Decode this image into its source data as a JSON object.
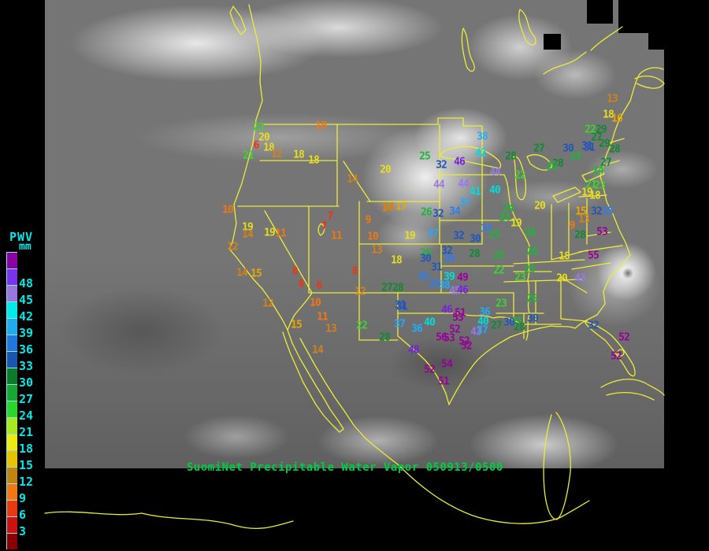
{
  "header": {
    "title": "SuomiNet Precipitable Water Vapor 050913/0500",
    "title_color": "#00cc44"
  },
  "legend": {
    "title": "PWV",
    "unit": "mm",
    "text_color": "#00e8e8",
    "labels": [
      "48",
      "45",
      "42",
      "39",
      "36",
      "33",
      "30",
      "27",
      "24",
      "21",
      "18",
      "15",
      "12",
      "9",
      "6",
      "3"
    ],
    "swatch_colors": [
      "#8a00a0",
      "#7733ee",
      "#9977dd",
      "#00e8e8",
      "#22aaee",
      "#2277dd",
      "#1a55b0",
      "#0d7a2a",
      "#16a832",
      "#2ed42e",
      "#a8e81e",
      "#eee814",
      "#e8c400",
      "#c08414",
      "#f07711",
      "#e83a10",
      "#cc1111",
      "#8a0000"
    ],
    "value_colors": [
      {
        "min": 49,
        "color": "#990099"
      },
      {
        "min": 46,
        "color": "#7722dd"
      },
      {
        "min": 43,
        "color": "#9977ee"
      },
      {
        "min": 39,
        "color": "#00dddd"
      },
      {
        "min": 36,
        "color": "#22aaff"
      },
      {
        "min": 33,
        "color": "#2d7df0"
      },
      {
        "min": 30,
        "color": "#2255bb"
      },
      {
        "min": 27,
        "color": "#0f8a30"
      },
      {
        "min": 24,
        "color": "#1db53a"
      },
      {
        "min": 21,
        "color": "#3ed232"
      },
      {
        "min": 18,
        "color": "#e6de1c"
      },
      {
        "min": 15,
        "color": "#e8a800"
      },
      {
        "min": 12,
        "color": "#d2821a"
      },
      {
        "min": 9,
        "color": "#f07711"
      },
      {
        "min": 6,
        "color": "#ee3311"
      },
      {
        "min": 3,
        "color": "#d41111"
      },
      {
        "min": 0,
        "color": "#990000"
      }
    ]
  },
  "chart_data": {
    "type": "scatter",
    "title": "SuomiNet Precipitable Water Vapor 050913/0500",
    "units": "mm",
    "note": "stations = [PWV_mm, x_px, y_px] on 900x700 canvas",
    "stations": [
      [
        23,
        328,
        162
      ],
      [
        20,
        335,
        175
      ],
      [
        6,
        325,
        185
      ],
      [
        18,
        341,
        188
      ],
      [
        21,
        315,
        198
      ],
      [
        12,
        351,
        196
      ],
      [
        18,
        379,
        197
      ],
      [
        18,
        398,
        204
      ],
      [
        10,
        407,
        160
      ],
      [
        14,
        447,
        228
      ],
      [
        20,
        489,
        216
      ],
      [
        25,
        539,
        199
      ],
      [
        38,
        612,
        174
      ],
      [
        42,
        610,
        195
      ],
      [
        32,
        560,
        210
      ],
      [
        46,
        583,
        206
      ],
      [
        44,
        628,
        219
      ],
      [
        28,
        648,
        199
      ],
      [
        27,
        684,
        189
      ],
      [
        30,
        721,
        189
      ],
      [
        31,
        748,
        188
      ],
      [
        24,
        730,
        199
      ],
      [
        28,
        708,
        208
      ],
      [
        26,
        700,
        212
      ],
      [
        22,
        660,
        223
      ],
      [
        44,
        557,
        235
      ],
      [
        44,
        588,
        234
      ],
      [
        41,
        603,
        244
      ],
      [
        40,
        628,
        242
      ],
      [
        37,
        590,
        258
      ],
      [
        26,
        541,
        270
      ],
      [
        32,
        556,
        272
      ],
      [
        34,
        577,
        269
      ],
      [
        14,
        491,
        265
      ],
      [
        17,
        509,
        263
      ],
      [
        20,
        685,
        262
      ],
      [
        24,
        645,
        265
      ],
      [
        24,
        640,
        277
      ],
      [
        19,
        655,
        284
      ],
      [
        13,
        777,
        126
      ],
      [
        18,
        772,
        146
      ],
      [
        16,
        783,
        151
      ],
      [
        22,
        749,
        165
      ],
      [
        29,
        763,
        165
      ],
      [
        27,
        757,
        175
      ],
      [
        31,
        745,
        186
      ],
      [
        29,
        767,
        183
      ],
      [
        28,
        780,
        190
      ],
      [
        27,
        769,
        207
      ],
      [
        24,
        759,
        217
      ],
      [
        21,
        750,
        235
      ],
      [
        23,
        761,
        236
      ],
      [
        19,
        745,
        245
      ],
      [
        18,
        755,
        249
      ],
      [
        15,
        737,
        269
      ],
      [
        13,
        741,
        279
      ],
      [
        9,
        726,
        287
      ],
      [
        32,
        757,
        269
      ],
      [
        35,
        771,
        269
      ],
      [
        28,
        736,
        299
      ],
      [
        53,
        764,
        295
      ],
      [
        55,
        753,
        325
      ],
      [
        18,
        716,
        326
      ],
      [
        20,
        713,
        354
      ],
      [
        43,
        736,
        354
      ],
      [
        10,
        289,
        267
      ],
      [
        19,
        314,
        289
      ],
      [
        14,
        314,
        298
      ],
      [
        19,
        342,
        296
      ],
      [
        11,
        356,
        297
      ],
      [
        12,
        295,
        314
      ],
      [
        14,
        307,
        347
      ],
      [
        15,
        325,
        348
      ],
      [
        8,
        374,
        345
      ],
      [
        8,
        382,
        361
      ],
      [
        6,
        405,
        363
      ],
      [
        12,
        340,
        386
      ],
      [
        10,
        400,
        385
      ],
      [
        11,
        409,
        403
      ],
      [
        15,
        376,
        413
      ],
      [
        13,
        420,
        418
      ],
      [
        14,
        403,
        445
      ],
      [
        7,
        419,
        275
      ],
      [
        7,
        411,
        288
      ],
      [
        9,
        467,
        280
      ],
      [
        10,
        473,
        301
      ],
      [
        13,
        478,
        318
      ],
      [
        11,
        427,
        300
      ],
      [
        14,
        493,
        263
      ],
      [
        8,
        450,
        345
      ],
      [
        12,
        457,
        371
      ],
      [
        19,
        520,
        300
      ],
      [
        37,
        549,
        297
      ],
      [
        32,
        582,
        300
      ],
      [
        34,
        617,
        291
      ],
      [
        25,
        627,
        299
      ],
      [
        30,
        603,
        304
      ],
      [
        28,
        602,
        323
      ],
      [
        25,
        633,
        325
      ],
      [
        18,
        503,
        331
      ],
      [
        26,
        540,
        322
      ],
      [
        32,
        567,
        319
      ],
      [
        34,
        570,
        329
      ],
      [
        30,
        540,
        329
      ],
      [
        31,
        554,
        340
      ],
      [
        35,
        537,
        352
      ],
      [
        33,
        551,
        361
      ],
      [
        39,
        570,
        352
      ],
      [
        38,
        564,
        363
      ],
      [
        49,
        587,
        353
      ],
      [
        45,
        577,
        370
      ],
      [
        46,
        587,
        369
      ],
      [
        27,
        491,
        366
      ],
      [
        28,
        505,
        366
      ],
      [
        31,
        508,
        388
      ],
      [
        22,
        633,
        344
      ],
      [
        25,
        672,
        343
      ],
      [
        23,
        660,
        353
      ],
      [
        26,
        673,
        296
      ],
      [
        26,
        675,
        320
      ],
      [
        26,
        675,
        380
      ],
      [
        23,
        636,
        386
      ],
      [
        31,
        510,
        390
      ],
      [
        37,
        507,
        412
      ],
      [
        36,
        529,
        418
      ],
      [
        40,
        545,
        410
      ],
      [
        46,
        567,
        394
      ],
      [
        51,
        584,
        398
      ],
      [
        53,
        581,
        404
      ],
      [
        36,
        615,
        397
      ],
      [
        40,
        613,
        409
      ],
      [
        52,
        577,
        419
      ],
      [
        56,
        560,
        429
      ],
      [
        53,
        570,
        430
      ],
      [
        52,
        589,
        434
      ],
      [
        52,
        592,
        440
      ],
      [
        43,
        604,
        422
      ],
      [
        37,
        612,
        420
      ],
      [
        48,
        525,
        445
      ],
      [
        52,
        545,
        470
      ],
      [
        54,
        567,
        463
      ],
      [
        51,
        563,
        485
      ],
      [
        22,
        459,
        414
      ],
      [
        28,
        488,
        429
      ],
      [
        27,
        630,
        414
      ],
      [
        25,
        656,
        409
      ],
      [
        28,
        659,
        416
      ],
      [
        30,
        646,
        410
      ],
      [
        30,
        676,
        405
      ],
      [
        32,
        753,
        414
      ],
      [
        52,
        792,
        429
      ],
      [
        52,
        782,
        453
      ]
    ]
  }
}
